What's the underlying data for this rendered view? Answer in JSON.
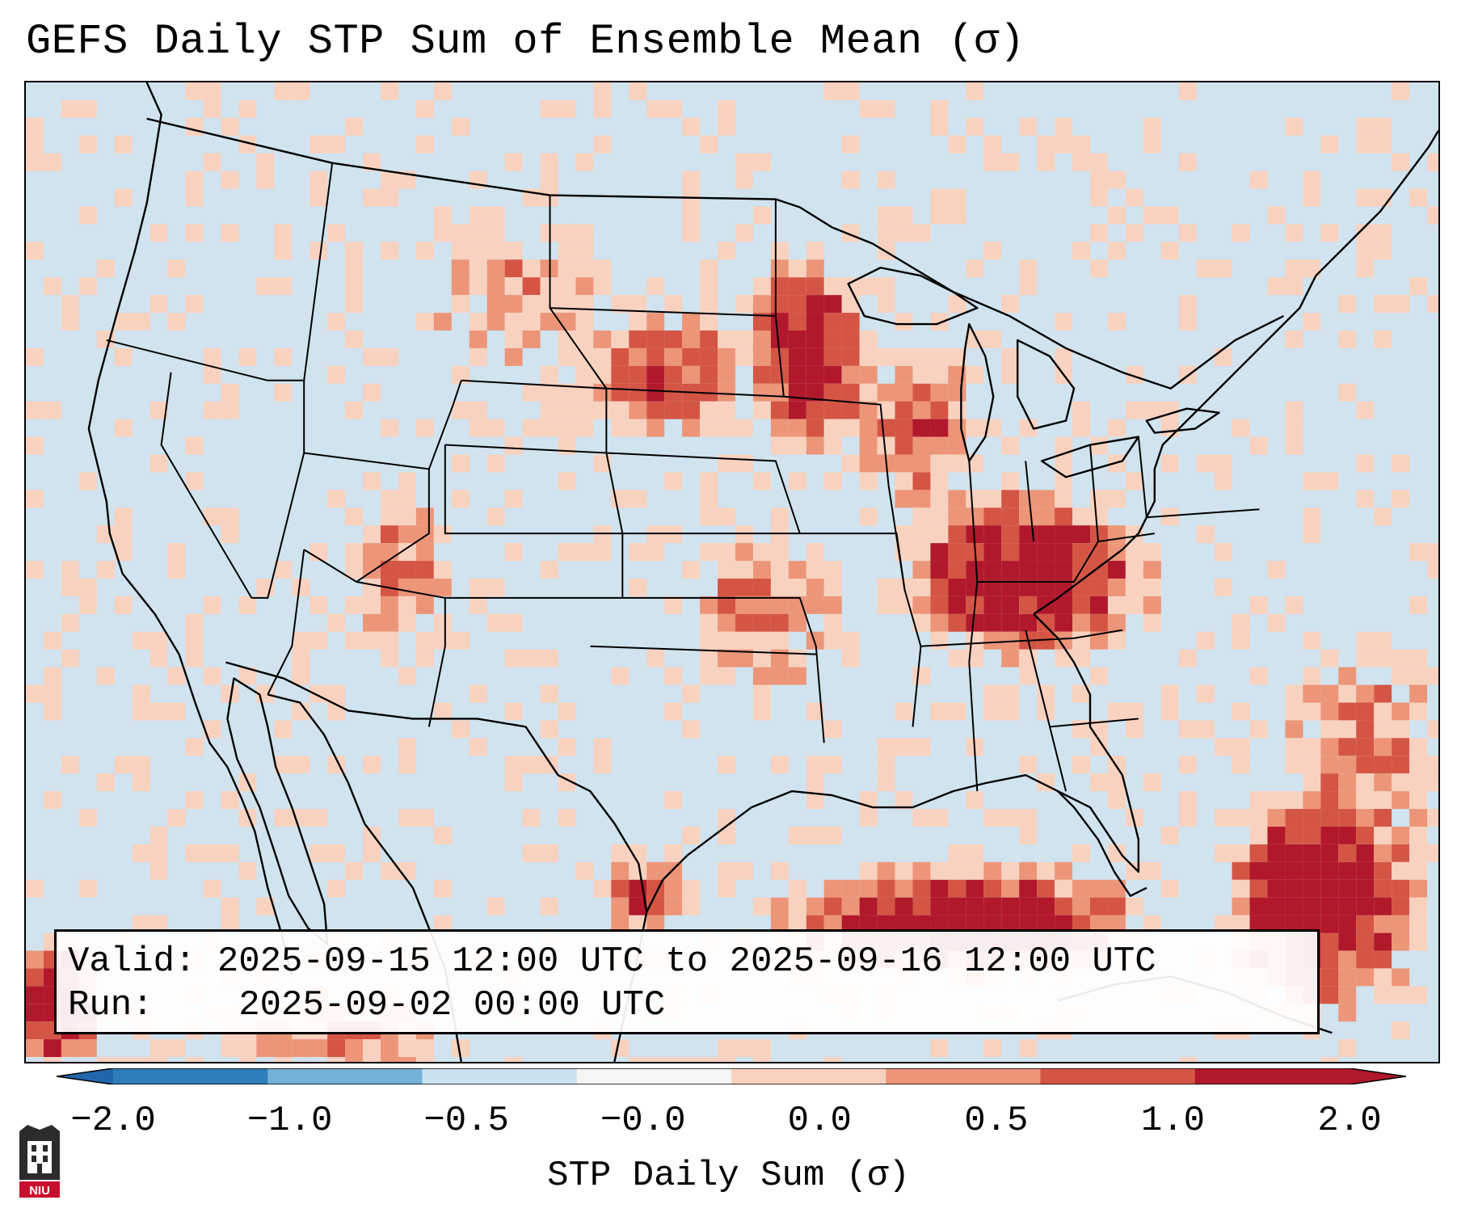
{
  "title": "GEFS Daily STP Sum of Ensemble Mean (σ)",
  "info": {
    "valid_label": "Valid:",
    "valid_value": "2025-09-15 12:00 UTC to 2025-09-16 12:00 UTC",
    "run_label": "Run:",
    "run_value": "2025-09-02 00:00 UTC"
  },
  "colorbar": {
    "label": "STP Daily Sum (σ)",
    "ticks": [
      "−2.0",
      "−1.0",
      "−0.5",
      "−0.0",
      "0.0",
      "0.5",
      "1.0",
      "2.0"
    ],
    "colors": [
      "#2f7db9",
      "#74b1d7",
      "#c9e1ef",
      "#f5f5f5",
      "#f9d2bf",
      "#ed9578",
      "#d55545",
      "#b2182b"
    ],
    "extend_low_color": "#2166ac",
    "extend_high_color": "#b2182b"
  },
  "map": {
    "background_color": "#d0e3ef",
    "features": [
      "coastlines",
      "US state borders",
      "Canada province borders",
      "Mexico border",
      "Great Lakes"
    ],
    "high_anomaly_regions": [
      "Ohio Valley / Kentucky / Tennessee",
      "Upper Midwest / Minnesota",
      "Northern Gulf of Mexico",
      "Bahamas / western Atlantic",
      "Northern Plains / South Dakota"
    ]
  },
  "logo": {
    "text": "NIU"
  }
}
